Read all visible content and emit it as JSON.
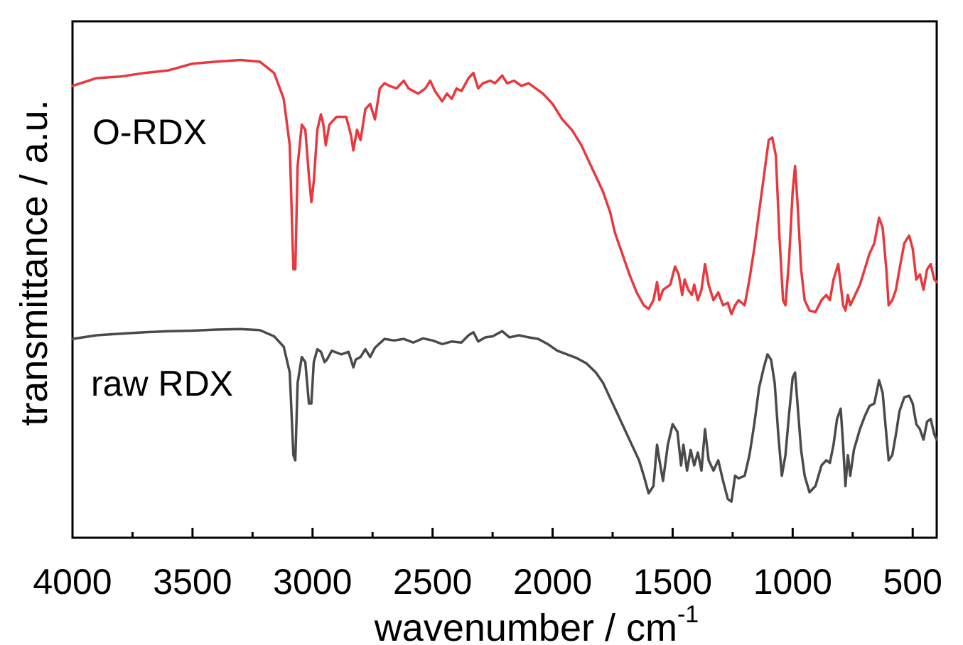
{
  "chart_data": {
    "type": "line",
    "xlabel": "wavenumber / cm",
    "xlabel_superscript": "-1",
    "ylabel": "transmittance / a.u.",
    "xlim": [
      4000,
      400
    ],
    "ylim": [
      0,
      1
    ],
    "x_reversed": true,
    "y_ticks_shown": false,
    "x_tick_labels": [
      "4000",
      "3500",
      "3000",
      "2500",
      "2000",
      "1500",
      "1000",
      "500"
    ],
    "x_ticks": [
      4000,
      3500,
      3000,
      2500,
      2000,
      1500,
      1000,
      500
    ],
    "x_minor_ticks": [
      3750,
      3250,
      2750,
      2250,
      1750,
      1250,
      750
    ],
    "grid": false,
    "legend": "none",
    "series": [
      {
        "name": "O-RDX",
        "color": "#e8383d",
        "points": [
          [
            4000,
            0.875
          ],
          [
            3900,
            0.89
          ],
          [
            3800,
            0.893
          ],
          [
            3700,
            0.9
          ],
          [
            3600,
            0.905
          ],
          [
            3500,
            0.918
          ],
          [
            3400,
            0.922
          ],
          [
            3300,
            0.925
          ],
          [
            3220,
            0.922
          ],
          [
            3160,
            0.9
          ],
          [
            3120,
            0.85
          ],
          [
            3095,
            0.76
          ],
          [
            3080,
            0.52
          ],
          [
            3072,
            0.52
          ],
          [
            3062,
            0.72
          ],
          [
            3045,
            0.8
          ],
          [
            3030,
            0.79
          ],
          [
            3015,
            0.7
          ],
          [
            3005,
            0.65
          ],
          [
            2995,
            0.69
          ],
          [
            2980,
            0.79
          ],
          [
            2965,
            0.82
          ],
          [
            2955,
            0.8
          ],
          [
            2945,
            0.76
          ],
          [
            2930,
            0.8
          ],
          [
            2900,
            0.815
          ],
          [
            2860,
            0.815
          ],
          [
            2840,
            0.78
          ],
          [
            2830,
            0.75
          ],
          [
            2815,
            0.79
          ],
          [
            2800,
            0.77
          ],
          [
            2780,
            0.83
          ],
          [
            2760,
            0.84
          ],
          [
            2740,
            0.81
          ],
          [
            2720,
            0.87
          ],
          [
            2700,
            0.88
          ],
          [
            2680,
            0.875
          ],
          [
            2650,
            0.87
          ],
          [
            2620,
            0.885
          ],
          [
            2600,
            0.87
          ],
          [
            2560,
            0.86
          ],
          [
            2530,
            0.87
          ],
          [
            2510,
            0.885
          ],
          [
            2490,
            0.865
          ],
          [
            2460,
            0.845
          ],
          [
            2440,
            0.86
          ],
          [
            2420,
            0.85
          ],
          [
            2400,
            0.87
          ],
          [
            2380,
            0.865
          ],
          [
            2350,
            0.89
          ],
          [
            2330,
            0.9
          ],
          [
            2310,
            0.87
          ],
          [
            2290,
            0.88
          ],
          [
            2260,
            0.885
          ],
          [
            2240,
            0.88
          ],
          [
            2210,
            0.895
          ],
          [
            2190,
            0.88
          ],
          [
            2160,
            0.885
          ],
          [
            2130,
            0.875
          ],
          [
            2100,
            0.88
          ],
          [
            2070,
            0.87
          ],
          [
            2040,
            0.86
          ],
          [
            2000,
            0.84
          ],
          [
            1960,
            0.81
          ],
          [
            1920,
            0.79
          ],
          [
            1880,
            0.76
          ],
          [
            1850,
            0.73
          ],
          [
            1820,
            0.7
          ],
          [
            1790,
            0.67
          ],
          [
            1760,
            0.63
          ],
          [
            1740,
            0.59
          ],
          [
            1710,
            0.55
          ],
          [
            1680,
            0.51
          ],
          [
            1650,
            0.475
          ],
          [
            1620,
            0.45
          ],
          [
            1600,
            0.443
          ],
          [
            1580,
            0.46
          ],
          [
            1565,
            0.495
          ],
          [
            1555,
            0.46
          ],
          [
            1540,
            0.48
          ],
          [
            1510,
            0.49
          ],
          [
            1490,
            0.525
          ],
          [
            1475,
            0.51
          ],
          [
            1460,
            0.47
          ],
          [
            1450,
            0.5
          ],
          [
            1435,
            0.48
          ],
          [
            1420,
            0.47
          ],
          [
            1410,
            0.49
          ],
          [
            1395,
            0.46
          ],
          [
            1380,
            0.48
          ],
          [
            1365,
            0.53
          ],
          [
            1350,
            0.49
          ],
          [
            1330,
            0.46
          ],
          [
            1310,
            0.475
          ],
          [
            1290,
            0.45
          ],
          [
            1270,
            0.455
          ],
          [
            1255,
            0.433
          ],
          [
            1240,
            0.45
          ],
          [
            1225,
            0.46
          ],
          [
            1200,
            0.45
          ],
          [
            1180,
            0.5
          ],
          [
            1160,
            0.56
          ],
          [
            1140,
            0.63
          ],
          [
            1120,
            0.7
          ],
          [
            1100,
            0.77
          ],
          [
            1085,
            0.775
          ],
          [
            1070,
            0.74
          ],
          [
            1055,
            0.58
          ],
          [
            1040,
            0.46
          ],
          [
            1030,
            0.45
          ],
          [
            1015,
            0.54
          ],
          [
            1000,
            0.67
          ],
          [
            990,
            0.72
          ],
          [
            980,
            0.65
          ],
          [
            965,
            0.52
          ],
          [
            950,
            0.46
          ],
          [
            930,
            0.44
          ],
          [
            905,
            0.437
          ],
          [
            880,
            0.46
          ],
          [
            860,
            0.47
          ],
          [
            845,
            0.46
          ],
          [
            830,
            0.5
          ],
          [
            810,
            0.53
          ],
          [
            800,
            0.49
          ],
          [
            790,
            0.45
          ],
          [
            780,
            0.44
          ],
          [
            770,
            0.47
          ],
          [
            760,
            0.45
          ],
          [
            740,
            0.47
          ],
          [
            720,
            0.49
          ],
          [
            700,
            0.52
          ],
          [
            680,
            0.55
          ],
          [
            660,
            0.57
          ],
          [
            640,
            0.62
          ],
          [
            625,
            0.6
          ],
          [
            610,
            0.52
          ],
          [
            600,
            0.45
          ],
          [
            585,
            0.46
          ],
          [
            570,
            0.48
          ],
          [
            555,
            0.52
          ],
          [
            535,
            0.57
          ],
          [
            515,
            0.585
          ],
          [
            500,
            0.56
          ],
          [
            485,
            0.5
          ],
          [
            470,
            0.51
          ],
          [
            455,
            0.48
          ],
          [
            440,
            0.52
          ],
          [
            425,
            0.53
          ],
          [
            410,
            0.5
          ],
          [
            400,
            0.495
          ]
        ]
      },
      {
        "name": "raw RDX",
        "color": "#4a4a4a",
        "points": [
          [
            4000,
            0.385
          ],
          [
            3900,
            0.392
          ],
          [
            3800,
            0.395
          ],
          [
            3700,
            0.398
          ],
          [
            3600,
            0.4
          ],
          [
            3500,
            0.401
          ],
          [
            3400,
            0.403
          ],
          [
            3300,
            0.404
          ],
          [
            3220,
            0.402
          ],
          [
            3160,
            0.39
          ],
          [
            3120,
            0.37
          ],
          [
            3095,
            0.32
          ],
          [
            3080,
            0.16
          ],
          [
            3072,
            0.15
          ],
          [
            3062,
            0.3
          ],
          [
            3045,
            0.35
          ],
          [
            3030,
            0.34
          ],
          [
            3015,
            0.26
          ],
          [
            3005,
            0.26
          ],
          [
            2995,
            0.34
          ],
          [
            2980,
            0.365
          ],
          [
            2965,
            0.36
          ],
          [
            2950,
            0.34
          ],
          [
            2940,
            0.345
          ],
          [
            2920,
            0.362
          ],
          [
            2880,
            0.355
          ],
          [
            2850,
            0.36
          ],
          [
            2830,
            0.33
          ],
          [
            2820,
            0.345
          ],
          [
            2800,
            0.35
          ],
          [
            2780,
            0.365
          ],
          [
            2760,
            0.35
          ],
          [
            2740,
            0.368
          ],
          [
            2700,
            0.385
          ],
          [
            2660,
            0.382
          ],
          [
            2620,
            0.385
          ],
          [
            2580,
            0.378
          ],
          [
            2540,
            0.386
          ],
          [
            2500,
            0.382
          ],
          [
            2460,
            0.375
          ],
          [
            2420,
            0.38
          ],
          [
            2380,
            0.378
          ],
          [
            2350,
            0.392
          ],
          [
            2330,
            0.398
          ],
          [
            2310,
            0.38
          ],
          [
            2280,
            0.388
          ],
          [
            2250,
            0.39
          ],
          [
            2210,
            0.4
          ],
          [
            2180,
            0.388
          ],
          [
            2140,
            0.392
          ],
          [
            2100,
            0.388
          ],
          [
            2060,
            0.385
          ],
          [
            2020,
            0.375
          ],
          [
            1980,
            0.362
          ],
          [
            1940,
            0.355
          ],
          [
            1900,
            0.348
          ],
          [
            1860,
            0.338
          ],
          [
            1820,
            0.32
          ],
          [
            1790,
            0.3
          ],
          [
            1760,
            0.27
          ],
          [
            1730,
            0.24
          ],
          [
            1700,
            0.21
          ],
          [
            1670,
            0.18
          ],
          [
            1640,
            0.15
          ],
          [
            1620,
            0.12
          ],
          [
            1600,
            0.086
          ],
          [
            1580,
            0.1
          ],
          [
            1565,
            0.18
          ],
          [
            1555,
            0.15
          ],
          [
            1540,
            0.11
          ],
          [
            1520,
            0.18
          ],
          [
            1500,
            0.22
          ],
          [
            1480,
            0.205
          ],
          [
            1465,
            0.14
          ],
          [
            1455,
            0.18
          ],
          [
            1440,
            0.13
          ],
          [
            1425,
            0.17
          ],
          [
            1410,
            0.14
          ],
          [
            1395,
            0.165
          ],
          [
            1380,
            0.13
          ],
          [
            1365,
            0.21
          ],
          [
            1350,
            0.15
          ],
          [
            1330,
            0.13
          ],
          [
            1310,
            0.15
          ],
          [
            1290,
            0.11
          ],
          [
            1270,
            0.075
          ],
          [
            1255,
            0.07
          ],
          [
            1240,
            0.12
          ],
          [
            1225,
            0.115
          ],
          [
            1200,
            0.12
          ],
          [
            1180,
            0.16
          ],
          [
            1160,
            0.22
          ],
          [
            1140,
            0.29
          ],
          [
            1120,
            0.33
          ],
          [
            1105,
            0.355
          ],
          [
            1090,
            0.345
          ],
          [
            1075,
            0.3
          ],
          [
            1060,
            0.2
          ],
          [
            1045,
            0.12
          ],
          [
            1030,
            0.16
          ],
          [
            1015,
            0.24
          ],
          [
            1000,
            0.31
          ],
          [
            990,
            0.32
          ],
          [
            980,
            0.26
          ],
          [
            965,
            0.17
          ],
          [
            950,
            0.12
          ],
          [
            930,
            0.088
          ],
          [
            905,
            0.1
          ],
          [
            880,
            0.14
          ],
          [
            860,
            0.15
          ],
          [
            845,
            0.145
          ],
          [
            830,
            0.18
          ],
          [
            815,
            0.23
          ],
          [
            800,
            0.25
          ],
          [
            790,
            0.18
          ],
          [
            780,
            0.1
          ],
          [
            770,
            0.16
          ],
          [
            760,
            0.12
          ],
          [
            745,
            0.17
          ],
          [
            720,
            0.21
          ],
          [
            700,
            0.235
          ],
          [
            680,
            0.255
          ],
          [
            660,
            0.26
          ],
          [
            640,
            0.305
          ],
          [
            625,
            0.28
          ],
          [
            610,
            0.2
          ],
          [
            600,
            0.15
          ],
          [
            585,
            0.16
          ],
          [
            570,
            0.2
          ],
          [
            555,
            0.245
          ],
          [
            535,
            0.272
          ],
          [
            515,
            0.275
          ],
          [
            500,
            0.26
          ],
          [
            485,
            0.22
          ],
          [
            470,
            0.21
          ],
          [
            455,
            0.19
          ],
          [
            440,
            0.225
          ],
          [
            425,
            0.23
          ],
          [
            410,
            0.2
          ],
          [
            400,
            0.19
          ]
        ]
      }
    ]
  }
}
